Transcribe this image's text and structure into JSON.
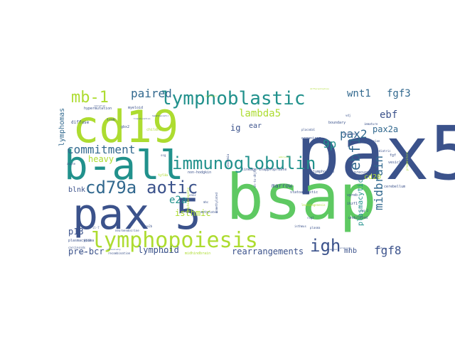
{
  "words": [
    {
      "text": "pax5",
      "color": "#3b528b"
    },
    {
      "text": "bsap",
      "color": "#5ec962"
    },
    {
      "text": "cd19",
      "color": "#addc30"
    },
    {
      "text": "b-all",
      "color": "#21918c"
    },
    {
      "text": "pax 5",
      "color": "#3b528b"
    },
    {
      "text": "lymphopoiesis",
      "color": "#addc30"
    },
    {
      "text": "immunoglobulin",
      "color": "#21918c"
    },
    {
      "text": "lymphoblastic",
      "color": "#21918c"
    },
    {
      "text": "cd79a",
      "color": "#31688e"
    },
    {
      "text": "aotic",
      "color": "#3b528b"
    },
    {
      "text": "ebf1",
      "color": "#31688e"
    },
    {
      "text": "commitment",
      "color": "#31688e"
    },
    {
      "text": "mb-1",
      "color": "#addc30"
    },
    {
      "text": "igh",
      "color": "#3b528b"
    },
    {
      "text": "paired",
      "color": "#31688e"
    },
    {
      "text": "wnt1",
      "color": "#31688e"
    },
    {
      "text": "fgf3",
      "color": "#31688e"
    },
    {
      "text": "ebf",
      "color": "#3b528b"
    },
    {
      "text": "pax2a",
      "color": "#31688e"
    },
    {
      "text": "pax2",
      "color": "#31688e"
    },
    {
      "text": "9p",
      "color": "#21918c"
    },
    {
      "text": "midbrain",
      "color": "#31688e"
    },
    {
      "text": "fgf8",
      "color": "#3b528b"
    },
    {
      "text": "lambda5",
      "color": "#addc30"
    },
    {
      "text": "heavy",
      "color": "#addc30"
    },
    {
      "text": "e2a",
      "color": "#21918c"
    },
    {
      "text": "isthmic",
      "color": "#addc30"
    },
    {
      "text": "pre-bcr",
      "color": "#3b528b"
    },
    {
      "text": "rearrangements",
      "color": "#3b528b"
    },
    {
      "text": "lymphoid",
      "color": "#3b528b"
    },
    {
      "text": "p13",
      "color": "#3b528b"
    },
    {
      "text": "blnk",
      "color": "#3b528b"
    },
    {
      "text": "lymphomas",
      "color": "#31688e"
    },
    {
      "text": "plasmacytic",
      "color": "#21918c"
    },
    {
      "text": "mhb",
      "color": "#3b528b"
    },
    {
      "text": "cd20",
      "color": "#addc30"
    },
    {
      "text": "ig",
      "color": "#3b528b"
    },
    {
      "text": "ear",
      "color": "#3b528b"
    },
    {
      "text": "marrow",
      "color": "#3b528b"
    },
    {
      "text": "diffuse",
      "color": "#3b528b"
    },
    {
      "text": "hypermutation",
      "color": "#3b528b"
    },
    {
      "text": "myeloid",
      "color": "#3b528b"
    },
    {
      "text": "trnk",
      "color": "#3b528b"
    },
    {
      "text": "gbx2",
      "color": "#3b528b"
    },
    {
      "text": "childhood",
      "color": "#addc30"
    },
    {
      "text": "non-hodgkin",
      "color": "#3b528b"
    },
    {
      "text": "lineage-inappropriate",
      "color": "#3b528b"
    },
    {
      "text": "lymphocyte",
      "color": "#3b528b"
    },
    {
      "text": "precursor",
      "color": "#3b528b"
    },
    {
      "text": "statoacoustic",
      "color": "#3b528b"
    },
    {
      "text": "vpreb",
      "color": "#3b528b"
    },
    {
      "text": "ikzf1",
      "color": "#3b528b"
    },
    {
      "text": "undulated",
      "color": "#3b528b"
    },
    {
      "text": "plasmacytoma",
      "color": "#3b528b"
    },
    {
      "text": "carcinoids",
      "color": "#3b528b"
    },
    {
      "text": "neuroendocrine",
      "color": "#3b528b"
    },
    {
      "text": "midhindbrain",
      "color": "#addc30"
    },
    {
      "text": "organizer",
      "color": "#3b528b"
    },
    {
      "text": "boundary",
      "color": "#3b528b"
    },
    {
      "text": "placodal",
      "color": "#3b528b"
    },
    {
      "text": "fgf",
      "color": "#3b528b"
    },
    {
      "text": "vesicle",
      "color": "#3b528b"
    },
    {
      "text": "cerebellum",
      "color": "#3b528b"
    },
    {
      "text": "leukaemic",
      "color": "#3b528b"
    },
    {
      "text": "leukemogenesis",
      "color": "#addc30"
    },
    {
      "text": "acute",
      "color": "#3b528b"
    },
    {
      "text": "fgf10a",
      "color": "#addc30"
    },
    {
      "text": "pax2b",
      "color": "#3b528b"
    },
    {
      "text": "isthmus",
      "color": "#3b528b"
    },
    {
      "text": "rag1",
      "color": "#3b528b"
    },
    {
      "text": "rag-2",
      "color": "#3b528b"
    },
    {
      "text": "plasma",
      "color": "#3b528b"
    },
    {
      "text": "box",
      "color": "#3b528b"
    },
    {
      "text": "vdj",
      "color": "#3b528b"
    },
    {
      "text": "immature",
      "color": "#3b528b"
    },
    {
      "text": "pediatric",
      "color": "#3b528b"
    },
    {
      "text": "fusion",
      "color": "#3b528b"
    },
    {
      "text": "progenitors",
      "color": "#addc30"
    },
    {
      "text": "il-7",
      "color": "#3b528b"
    },
    {
      "text": "6p13",
      "color": "#3b528b"
    },
    {
      "text": "ssg",
      "color": "#3b528b"
    },
    {
      "text": "cd22",
      "color": "#3b528b"
    },
    {
      "text": "mhc",
      "color": "#3b528b"
    },
    {
      "text": "leukemia",
      "color": "#3b528b"
    },
    {
      "text": "vh-to-dhjh",
      "color": "#3b528b"
    },
    {
      "text": "unmethylated",
      "color": "#3b528b"
    },
    {
      "text": "methylated",
      "color": "#3b528b"
    },
    {
      "text": "recombination",
      "color": "#3b528b"
    },
    {
      "text": "exclusively",
      "color": "#3b528b"
    },
    {
      "text": "anemia",
      "color": "#3b528b"
    },
    {
      "text": "hematopoietic",
      "color": "#3b528b"
    },
    {
      "text": "translocation",
      "color": "#3b528b"
    },
    {
      "text": "lymphadenopathy",
      "color": "#addc30"
    },
    {
      "text": "embryonic",
      "color": "#addc30"
    },
    {
      "text": "cerebellar",
      "color": "#addc30"
    },
    {
      "text": "differentiation",
      "color": "#addc30"
    },
    {
      "text": "diagnosis",
      "color": "#3b528b"
    },
    {
      "text": "prognosis",
      "color": "#3b528b"
    },
    {
      "text": "mature",
      "color": "#3b528b"
    },
    {
      "text": "stroke",
      "color": "#3b528b"
    },
    {
      "text": "zebrafish",
      "color": "#3b528b"
    }
  ]
}
